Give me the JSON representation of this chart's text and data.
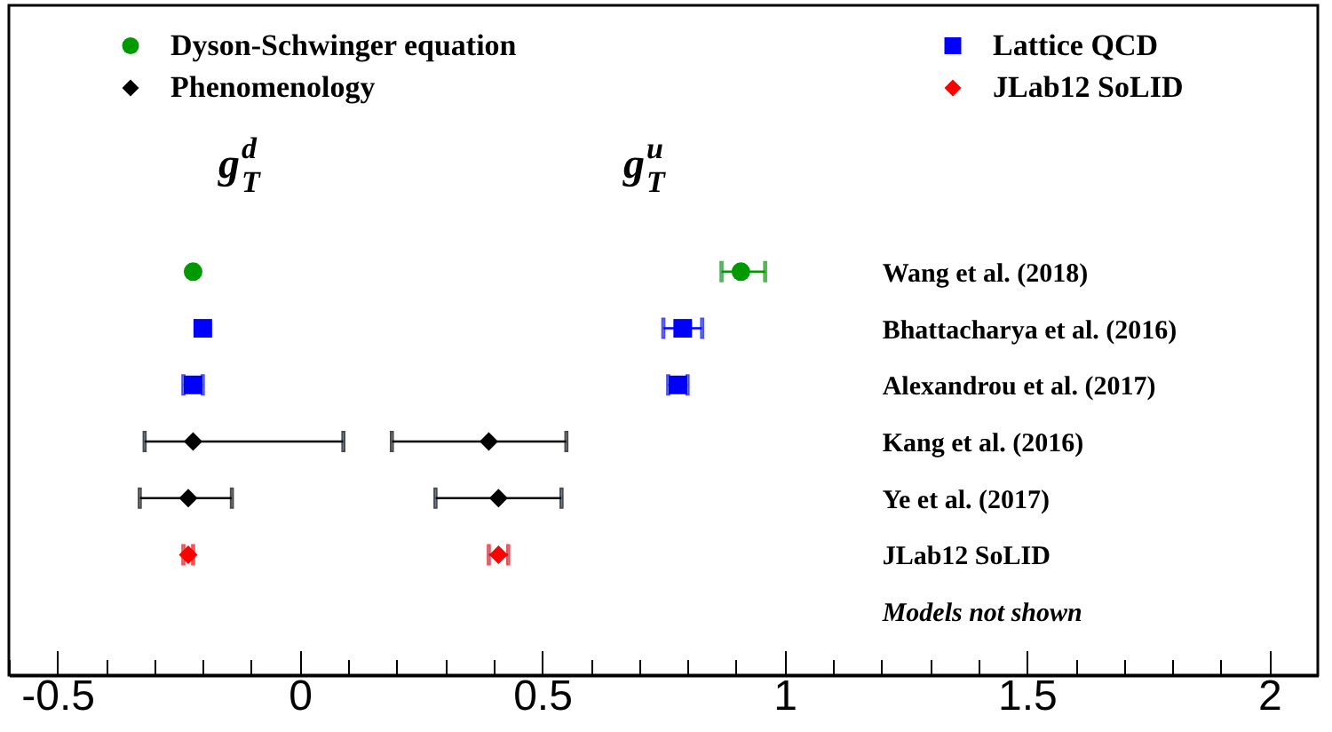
{
  "chart_data": {
    "type": "scatter",
    "orientation": "horizontal",
    "legend": "top left",
    "categories": [
      "Wang et al. (2018)",
      "Bhattacharya et al. (2016)",
      "Alexandrou et al. (2017)",
      "Kang et al. (2016)",
      "Ye et al. (2017)",
      "JLab12 SoLID",
      "Models not shown"
    ],
    "series": [
      {
        "name": "Dyson-Schwinger equation",
        "color": "#009900",
        "marker": "circle",
        "values": [
          -0.22,
          null,
          null,
          null,
          null,
          null,
          null
        ],
        "errors": [
          null,
          null,
          null,
          null,
          null,
          null,
          null
        ]
      },
      {
        "name": "Lattice QCD",
        "color": "#0000ff",
        "marker": "square",
        "values": [
          null,
          -0.2,
          -0.22,
          null,
          null,
          null,
          null
        ],
        "errors": [
          null,
          null,
          0.02,
          null,
          null,
          null,
          null
        ]
      },
      {
        "name": "Phenomenology",
        "color": "#000000",
        "marker": "diamond",
        "values": [
          null,
          null,
          null,
          -0.22,
          -0.23,
          null,
          null
        ],
        "errors": [
          null,
          null,
          null,
          [
            -0.32,
            0.09
          ],
          [
            -0.33,
            -0.14
          ],
          null,
          null
        ]
      },
      {
        "name": "JLab12 SoLID",
        "color": "#ff0000",
        "marker": "diamond",
        "values": [
          null,
          null,
          null,
          null,
          null,
          -0.23,
          null
        ],
        "errors": [
          null,
          null,
          null,
          null,
          null,
          0.01,
          null
        ]
      },
      {
        "color": "#009900",
        "marker": "circle",
        "values": [
          0.91,
          null,
          null,
          null,
          null,
          null,
          null
        ],
        "errors": [
          [
            0.87,
            0.96
          ],
          null,
          null,
          null,
          null,
          null,
          null
        ]
      },
      {
        "color": "#0000ff",
        "marker": "square",
        "values": [
          null,
          0.79,
          0.78,
          null,
          null,
          null,
          null
        ],
        "errors": [
          null,
          0.04,
          0.02,
          null,
          null,
          null,
          null
        ]
      },
      {
        "color": "#000000",
        "marker": "diamond",
        "values": [
          null,
          null,
          null,
          0.39,
          0.41,
          null,
          null
        ],
        "errors": [
          null,
          null,
          null,
          [
            0.19,
            0.55
          ],
          [
            0.28,
            0.54
          ],
          null,
          null
        ]
      },
      {
        "color": "#ff0000",
        "marker": "diamond",
        "values": [
          null,
          null,
          null,
          null,
          null,
          0.41,
          null
        ],
        "errors": [
          null,
          null,
          null,
          null,
          null,
          0.02,
          null
        ]
      }
    ],
    "xlim": [
      -0.6,
      2.1
    ],
    "xticks": [
      {
        "value": -0.6,
        "label": null
      },
      -0.5,
      {
        "value": -0.4,
        "label": null
      },
      {
        "value": -0.3,
        "label": null
      },
      {
        "value": -0.2,
        "label": null
      },
      {
        "value": -0.1,
        "label": null
      },
      0,
      {
        "value": 0.1,
        "label": null
      },
      {
        "value": 0.2,
        "label": null
      },
      {
        "value": 0.3,
        "label": null
      },
      {
        "value": 0.4,
        "label": null
      },
      0.5,
      {
        "value": 0.6,
        "label": null
      },
      {
        "value": 0.7,
        "label": null
      },
      {
        "value": 0.8,
        "label": null
      },
      {
        "value": 0.9,
        "label": null
      },
      1,
      {
        "value": 1.1,
        "label": null
      },
      {
        "value": 1.2,
        "label": null
      },
      {
        "value": 1.3,
        "label": null
      },
      {
        "value": 1.4,
        "label": null
      },
      1.5,
      {
        "value": 1.6,
        "label": null
      },
      {
        "value": 1.7,
        "label": null
      },
      {
        "value": 1.8,
        "label": null
      },
      {
        "value": 1.9,
        "label": null
      },
      2
    ],
    "annotations": [
      "g$^{d}$$_{T}$",
      "g$^{u}$$_{T}$"
    ]
  }
}
